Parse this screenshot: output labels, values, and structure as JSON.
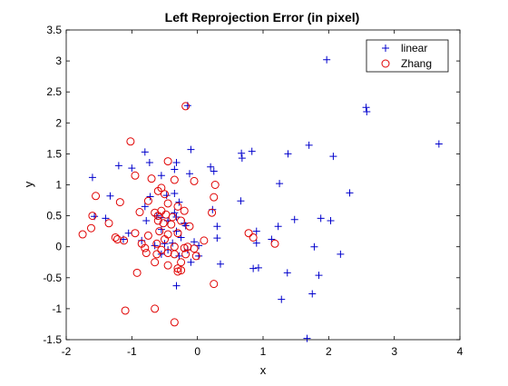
{
  "chart_data": {
    "type": "scatter",
    "title": "Left Reprojection Error (in pixel)",
    "xlabel": "x",
    "ylabel": "y",
    "xlim": [
      -2,
      4
    ],
    "ylim": [
      -1.5,
      3.5
    ],
    "xticks": [
      -2,
      -1,
      0,
      1,
      2,
      3,
      4
    ],
    "yticks": [
      -1.5,
      -1,
      -0.5,
      0,
      0.5,
      1,
      1.5,
      2,
      2.5,
      3,
      3.5
    ],
    "grid": false,
    "legend_position": "top-right",
    "series": [
      {
        "name": "linear",
        "marker": "plus",
        "color": "#0000cc",
        "points": [
          [
            -0.15,
            2.28
          ],
          [
            1.97,
            3.02
          ],
          [
            2.57,
            2.25
          ],
          [
            2.58,
            2.18
          ],
          [
            3.68,
            1.66
          ],
          [
            -1.6,
            1.12
          ],
          [
            -1.2,
            1.31
          ],
          [
            -0.8,
            1.53
          ],
          [
            -0.73,
            1.36
          ],
          [
            -0.32,
            1.36
          ],
          [
            -0.1,
            1.57
          ],
          [
            0.2,
            1.29
          ],
          [
            0.67,
            1.51
          ],
          [
            0.68,
            1.43
          ],
          [
            0.83,
            1.54
          ],
          [
            1.38,
            1.5
          ],
          [
            1.7,
            1.64
          ],
          [
            2.07,
            1.46
          ],
          [
            -1.0,
            1.27
          ],
          [
            -0.55,
            1.15
          ],
          [
            -0.35,
            1.25
          ],
          [
            -0.12,
            1.18
          ],
          [
            0.25,
            1.22
          ],
          [
            1.25,
            1.02
          ],
          [
            2.32,
            0.87
          ],
          [
            -1.33,
            0.82
          ],
          [
            -0.72,
            0.81
          ],
          [
            -0.47,
            0.83
          ],
          [
            -0.35,
            0.86
          ],
          [
            -0.28,
            0.72
          ],
          [
            0.66,
            0.74
          ],
          [
            -1.57,
            0.49
          ],
          [
            -0.8,
            0.65
          ],
          [
            -0.62,
            0.5
          ],
          [
            -0.55,
            0.47
          ],
          [
            -0.45,
            0.42
          ],
          [
            -0.35,
            0.55
          ],
          [
            -0.32,
            0.48
          ],
          [
            -0.2,
            0.38
          ],
          [
            0.23,
            0.6
          ],
          [
            -1.05,
            0.22
          ],
          [
            -1.4,
            0.46
          ],
          [
            -0.78,
            0.42
          ],
          [
            -0.55,
            0.28
          ],
          [
            -0.32,
            0.25
          ],
          [
            -0.18,
            0.34
          ],
          [
            0.3,
            0.33
          ],
          [
            0.9,
            0.25
          ],
          [
            1.23,
            0.33
          ],
          [
            1.48,
            0.44
          ],
          [
            1.88,
            0.46
          ],
          [
            2.03,
            0.42
          ],
          [
            -1.13,
            0.12
          ],
          [
            -0.85,
            0.1
          ],
          [
            -0.65,
            0.02
          ],
          [
            -0.5,
            0.05
          ],
          [
            -0.45,
            -0.05
          ],
          [
            -0.38,
            0.06
          ],
          [
            -0.25,
            0.15
          ],
          [
            -0.15,
            -0.05
          ],
          [
            -0.05,
            0.08
          ],
          [
            0.02,
            0.02
          ],
          [
            0.3,
            0.14
          ],
          [
            0.9,
            0.06
          ],
          [
            1.13,
            0.12
          ],
          [
            1.78,
            0.0
          ],
          [
            -0.55,
            -0.12
          ],
          [
            -0.28,
            -0.15
          ],
          [
            0.02,
            -0.15
          ],
          [
            -0.1,
            -0.25
          ],
          [
            0.35,
            -0.28
          ],
          [
            2.18,
            -0.12
          ],
          [
            0.85,
            -0.35
          ],
          [
            0.93,
            -0.34
          ],
          [
            1.37,
            -0.42
          ],
          [
            1.85,
            -0.46
          ],
          [
            -0.32,
            -0.63
          ],
          [
            1.28,
            -0.85
          ],
          [
            1.75,
            -0.76
          ],
          [
            1.67,
            -1.48
          ]
        ]
      },
      {
        "name": "Zhang",
        "marker": "circle",
        "color": "#e00000",
        "points": [
          [
            -0.18,
            2.27
          ],
          [
            -1.02,
            1.7
          ],
          [
            -0.45,
            1.38
          ],
          [
            -0.95,
            1.15
          ],
          [
            -0.7,
            1.1
          ],
          [
            -0.35,
            1.08
          ],
          [
            -0.05,
            1.06
          ],
          [
            0.27,
            1.0
          ],
          [
            -0.55,
            0.95
          ],
          [
            -0.6,
            0.9
          ],
          [
            -0.5,
            0.85
          ],
          [
            -1.55,
            0.82
          ],
          [
            -1.18,
            0.72
          ],
          [
            -0.75,
            0.74
          ],
          [
            -0.45,
            0.7
          ],
          [
            -0.3,
            0.65
          ],
          [
            0.25,
            0.8
          ],
          [
            -0.2,
            0.58
          ],
          [
            0.22,
            0.55
          ],
          [
            -0.88,
            0.56
          ],
          [
            -0.65,
            0.55
          ],
          [
            -0.55,
            0.58
          ],
          [
            -0.6,
            0.5
          ],
          [
            -0.48,
            0.52
          ],
          [
            -0.38,
            0.48
          ],
          [
            -0.25,
            0.42
          ],
          [
            -1.6,
            0.5
          ],
          [
            -1.35,
            0.38
          ],
          [
            -0.6,
            0.42
          ],
          [
            -0.52,
            0.38
          ],
          [
            -0.4,
            0.36
          ],
          [
            -0.12,
            0.33
          ],
          [
            -1.62,
            0.3
          ],
          [
            -1.75,
            0.2
          ],
          [
            -0.95,
            0.22
          ],
          [
            -0.75,
            0.18
          ],
          [
            -0.58,
            0.25
          ],
          [
            -0.45,
            0.2
          ],
          [
            -0.3,
            0.22
          ],
          [
            -1.25,
            0.15
          ],
          [
            -1.12,
            0.1
          ],
          [
            -1.22,
            0.12
          ],
          [
            -0.85,
            0.05
          ],
          [
            -0.8,
            -0.02
          ],
          [
            -0.62,
            0.05
          ],
          [
            -0.55,
            -0.05
          ],
          [
            -0.5,
            0.12
          ],
          [
            -0.35,
            0.0
          ],
          [
            -0.2,
            -0.02
          ],
          [
            -0.15,
            0.0
          ],
          [
            -0.05,
            -0.03
          ],
          [
            0.1,
            0.1
          ],
          [
            0.78,
            0.22
          ],
          [
            0.85,
            0.15
          ],
          [
            1.18,
            0.05
          ],
          [
            -0.78,
            -0.1
          ],
          [
            -0.62,
            -0.12
          ],
          [
            -0.45,
            -0.1
          ],
          [
            -0.35,
            -0.12
          ],
          [
            -0.18,
            -0.12
          ],
          [
            -0.02,
            -0.15
          ],
          [
            -0.65,
            -0.25
          ],
          [
            -0.45,
            -0.3
          ],
          [
            -0.25,
            -0.25
          ],
          [
            -0.3,
            -0.35
          ],
          [
            -0.3,
            -0.4
          ],
          [
            -0.25,
            -0.38
          ],
          [
            -0.92,
            -0.42
          ],
          [
            0.25,
            -0.6
          ],
          [
            -1.1,
            -1.03
          ],
          [
            -0.65,
            -1.0
          ],
          [
            -0.35,
            -1.22
          ]
        ]
      }
    ]
  }
}
